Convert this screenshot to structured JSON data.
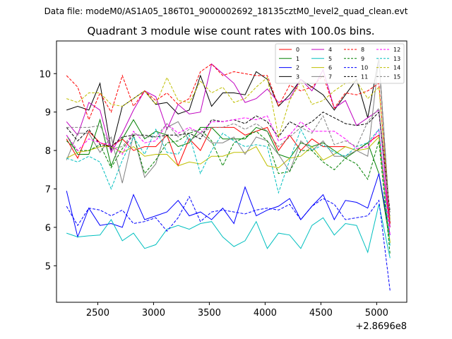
{
  "suptitle": "Data file: modeM0/AS1A05_186T01_9000002692_18135cztM0_level2_quad_clean.evt",
  "chart_data": {
    "type": "line",
    "title": "Quadrant 3 module wise count rates with 100.0s bins.",
    "xlabel": "",
    "ylabel": "",
    "x_offset_label": "+2.8696e8",
    "xlim": [
      2130,
      5270
    ],
    "ylim": [
      4.05,
      10.85
    ],
    "xticks": [
      2500,
      3000,
      3500,
      4000,
      4500,
      5000
    ],
    "yticks": [
      5,
      6,
      7,
      8,
      9,
      10
    ],
    "grid": false,
    "legend_position": "top-right",
    "x": [
      2220,
      2320,
      2420,
      2520,
      2620,
      2720,
      2820,
      2920,
      3020,
      3120,
      3220,
      3320,
      3420,
      3520,
      3620,
      3720,
      3820,
      3920,
      4020,
      4120,
      4220,
      4320,
      4420,
      4520,
      4620,
      4720,
      4820,
      4920,
      5020,
      5120
    ],
    "series": [
      {
        "name": "0",
        "color": "#ff0000",
        "dash": "solid",
        "values": [
          8.3,
          7.8,
          8.5,
          8.2,
          8.1,
          8.3,
          8.0,
          8.1,
          8.1,
          8.4,
          7.6,
          8.3,
          8.0,
          8.6,
          8.6,
          8.6,
          8.4,
          8.5,
          8.6,
          8.0,
          8.4,
          8.0,
          8.3,
          8.1,
          8.1,
          8.1,
          8.0,
          8.2,
          8.4,
          6.0
        ]
      },
      {
        "name": "1",
        "color": "#008000",
        "dash": "solid",
        "values": [
          8.4,
          7.9,
          7.9,
          8.8,
          7.6,
          8.3,
          8.8,
          8.3,
          8.5,
          8.4,
          8.1,
          8.2,
          8.6,
          8.6,
          8.3,
          8.3,
          8.3,
          8.6,
          8.5,
          7.9,
          7.8,
          8.2,
          8.1,
          8.2,
          8.0,
          7.8,
          8.0,
          8.2,
          7.4,
          5.6
        ]
      },
      {
        "name": "2",
        "color": "#0000ff",
        "dash": "solid",
        "values": [
          6.95,
          5.75,
          6.5,
          6.05,
          6.1,
          6.0,
          6.85,
          6.2,
          6.3,
          6.4,
          6.7,
          6.3,
          6.4,
          6.2,
          6.5,
          6.1,
          7.05,
          6.3,
          6.45,
          6.55,
          6.75,
          6.2,
          6.55,
          6.85,
          6.2,
          6.7,
          6.65,
          6.5,
          7.4,
          5.8
        ]
      },
      {
        "name": "3",
        "color": "#000000",
        "dash": "solid",
        "values": [
          9.05,
          9.15,
          9.05,
          9.75,
          8.0,
          9.15,
          9.35,
          9.55,
          9.2,
          9.25,
          8.95,
          9.05,
          9.95,
          9.15,
          9.5,
          9.5,
          9.45,
          10.05,
          9.85,
          9.15,
          9.45,
          9.85,
          9.65,
          9.45,
          9.05,
          9.45,
          9.85,
          8.85,
          10.4,
          6.1
        ]
      },
      {
        "name": "4",
        "color": "#c000c0",
        "dash": "solid",
        "values": [
          8.75,
          8.4,
          9.25,
          9.05,
          7.95,
          8.45,
          9.05,
          9.55,
          9.4,
          8.55,
          9.2,
          8.95,
          9.0,
          10.25,
          10.0,
          9.75,
          9.25,
          9.35,
          9.6,
          9.25,
          9.35,
          9.85,
          9.55,
          10.1,
          9.1,
          9.3,
          8.65,
          8.85,
          9.05,
          6.0
        ]
      },
      {
        "name": "5",
        "color": "#00bfbf",
        "dash": "solid",
        "values": [
          5.85,
          5.75,
          5.78,
          5.8,
          6.2,
          5.65,
          5.85,
          5.45,
          5.55,
          5.95,
          6.05,
          5.95,
          6.1,
          6.15,
          5.75,
          5.5,
          5.65,
          6.15,
          5.45,
          5.85,
          5.8,
          5.45,
          6.05,
          6.25,
          5.8,
          6.1,
          6.05,
          5.35,
          6.6,
          5.2
        ]
      },
      {
        "name": "6",
        "color": "#bfbf00",
        "dash": "solid",
        "values": [
          7.8,
          7.95,
          8.0,
          8.1,
          8.1,
          7.95,
          8.1,
          7.85,
          7.9,
          7.9,
          7.6,
          7.7,
          7.65,
          7.85,
          7.85,
          7.95,
          7.95,
          8.1,
          7.6,
          7.55,
          7.8,
          7.85,
          8.1,
          7.75,
          7.9,
          8.1,
          8.0,
          8.05,
          8.35,
          5.6
        ]
      },
      {
        "name": "7",
        "color": "#808080",
        "dash": "solid",
        "values": [
          7.75,
          8.45,
          8.45,
          7.95,
          8.35,
          7.15,
          8.4,
          7.3,
          7.65,
          8.6,
          8.75,
          8.25,
          8.45,
          8.2,
          8.2,
          8.35,
          7.9,
          8.35,
          8.25,
          7.9,
          7.45,
          8.25,
          8.0,
          8.25,
          7.85,
          7.85,
          8.0,
          7.85,
          10.4,
          6.1
        ]
      },
      {
        "name": "8",
        "color": "#ff0000",
        "dash": "dashed",
        "values": [
          9.95,
          9.65,
          8.8,
          9.5,
          9.0,
          9.95,
          9.15,
          9.55,
          9.3,
          9.5,
          9.2,
          9.35,
          10.05,
          10.25,
          9.95,
          10.05,
          10.0,
          9.95,
          9.95,
          9.15,
          9.7,
          9.55,
          9.65,
          9.95,
          9.1,
          9.5,
          9.45,
          9.55,
          9.75,
          6.1
        ]
      },
      {
        "name": "9",
        "color": "#008000",
        "dash": "dashed",
        "values": [
          8.25,
          8.0,
          8.0,
          8.15,
          7.55,
          8.05,
          8.4,
          7.4,
          7.75,
          8.2,
          8.25,
          8.45,
          8.55,
          8.25,
          7.6,
          8.2,
          8.35,
          8.5,
          8.25,
          7.4,
          7.45,
          8.0,
          8.0,
          7.7,
          7.5,
          7.8,
          7.65,
          7.25,
          8.25,
          5.3
        ]
      },
      {
        "name": "10",
        "color": "#0000ff",
        "dash": "dashed",
        "values": [
          6.55,
          6.05,
          6.5,
          6.45,
          6.3,
          6.45,
          6.1,
          6.15,
          6.25,
          5.9,
          6.25,
          6.8,
          6.15,
          6.4,
          6.45,
          6.4,
          6.35,
          6.45,
          6.5,
          6.45,
          6.6,
          6.2,
          6.55,
          6.75,
          6.6,
          6.2,
          6.25,
          6.3,
          6.7,
          4.35
        ]
      },
      {
        "name": "11",
        "color": "#000000",
        "dash": "dashed",
        "values": [
          8.6,
          8.25,
          8.55,
          8.15,
          8.1,
          8.35,
          8.4,
          8.4,
          8.35,
          8.4,
          8.4,
          8.45,
          8.3,
          8.8,
          8.75,
          8.8,
          8.7,
          8.9,
          8.75,
          8.35,
          8.75,
          8.6,
          8.75,
          9.0,
          8.85,
          8.7,
          8.65,
          8.7,
          9.0,
          6.4
        ]
      },
      {
        "name": "12",
        "color": "#ff00ff",
        "dash": "dashed",
        "values": [
          8.4,
          8.0,
          8.3,
          8.2,
          8.15,
          7.9,
          8.5,
          8.2,
          8.25,
          8.7,
          8.45,
          8.6,
          8.45,
          8.75,
          8.75,
          8.8,
          8.85,
          8.8,
          8.9,
          8.25,
          8.4,
          8.75,
          8.5,
          8.5,
          8.5,
          8.3,
          8.05,
          8.1,
          8.55,
          5.8
        ]
      },
      {
        "name": "13",
        "color": "#00bfbf",
        "dash": "dashed",
        "values": [
          7.8,
          7.7,
          7.85,
          7.7,
          7.0,
          7.75,
          8.35,
          7.9,
          8.55,
          7.95,
          7.9,
          8.4,
          7.4,
          8.0,
          8.45,
          8.25,
          8.1,
          8.15,
          8.1,
          6.9,
          7.75,
          8.55,
          8.0,
          8.15,
          7.95,
          7.85,
          8.1,
          8.2,
          8.55,
          5.5
        ]
      },
      {
        "name": "14",
        "color": "#bfbf00",
        "dash": "dashed",
        "values": [
          9.35,
          9.25,
          9.5,
          9.5,
          9.2,
          9.15,
          9.35,
          9.55,
          9.2,
          9.9,
          9.3,
          9.25,
          9.8,
          9.5,
          9.65,
          9.25,
          9.35,
          9.65,
          9.9,
          8.35,
          9.3,
          9.8,
          9.2,
          9.3,
          9.55,
          9.75,
          9.8,
          9.35,
          9.65,
          6.2
        ]
      },
      {
        "name": "15",
        "color": "#808080",
        "dash": "dashed",
        "values": [
          8.6,
          8.6,
          8.6,
          8.65,
          8.05,
          8.1,
          8.45,
          8.35,
          8.35,
          8.7,
          8.35,
          8.55,
          8.45,
          8.6,
          8.6,
          8.7,
          8.55,
          8.7,
          8.5,
          8.1,
          8.35,
          8.6,
          8.45,
          8.9,
          8.15,
          8.25,
          8.1,
          8.75,
          9.1,
          6.3
        ]
      }
    ]
  }
}
